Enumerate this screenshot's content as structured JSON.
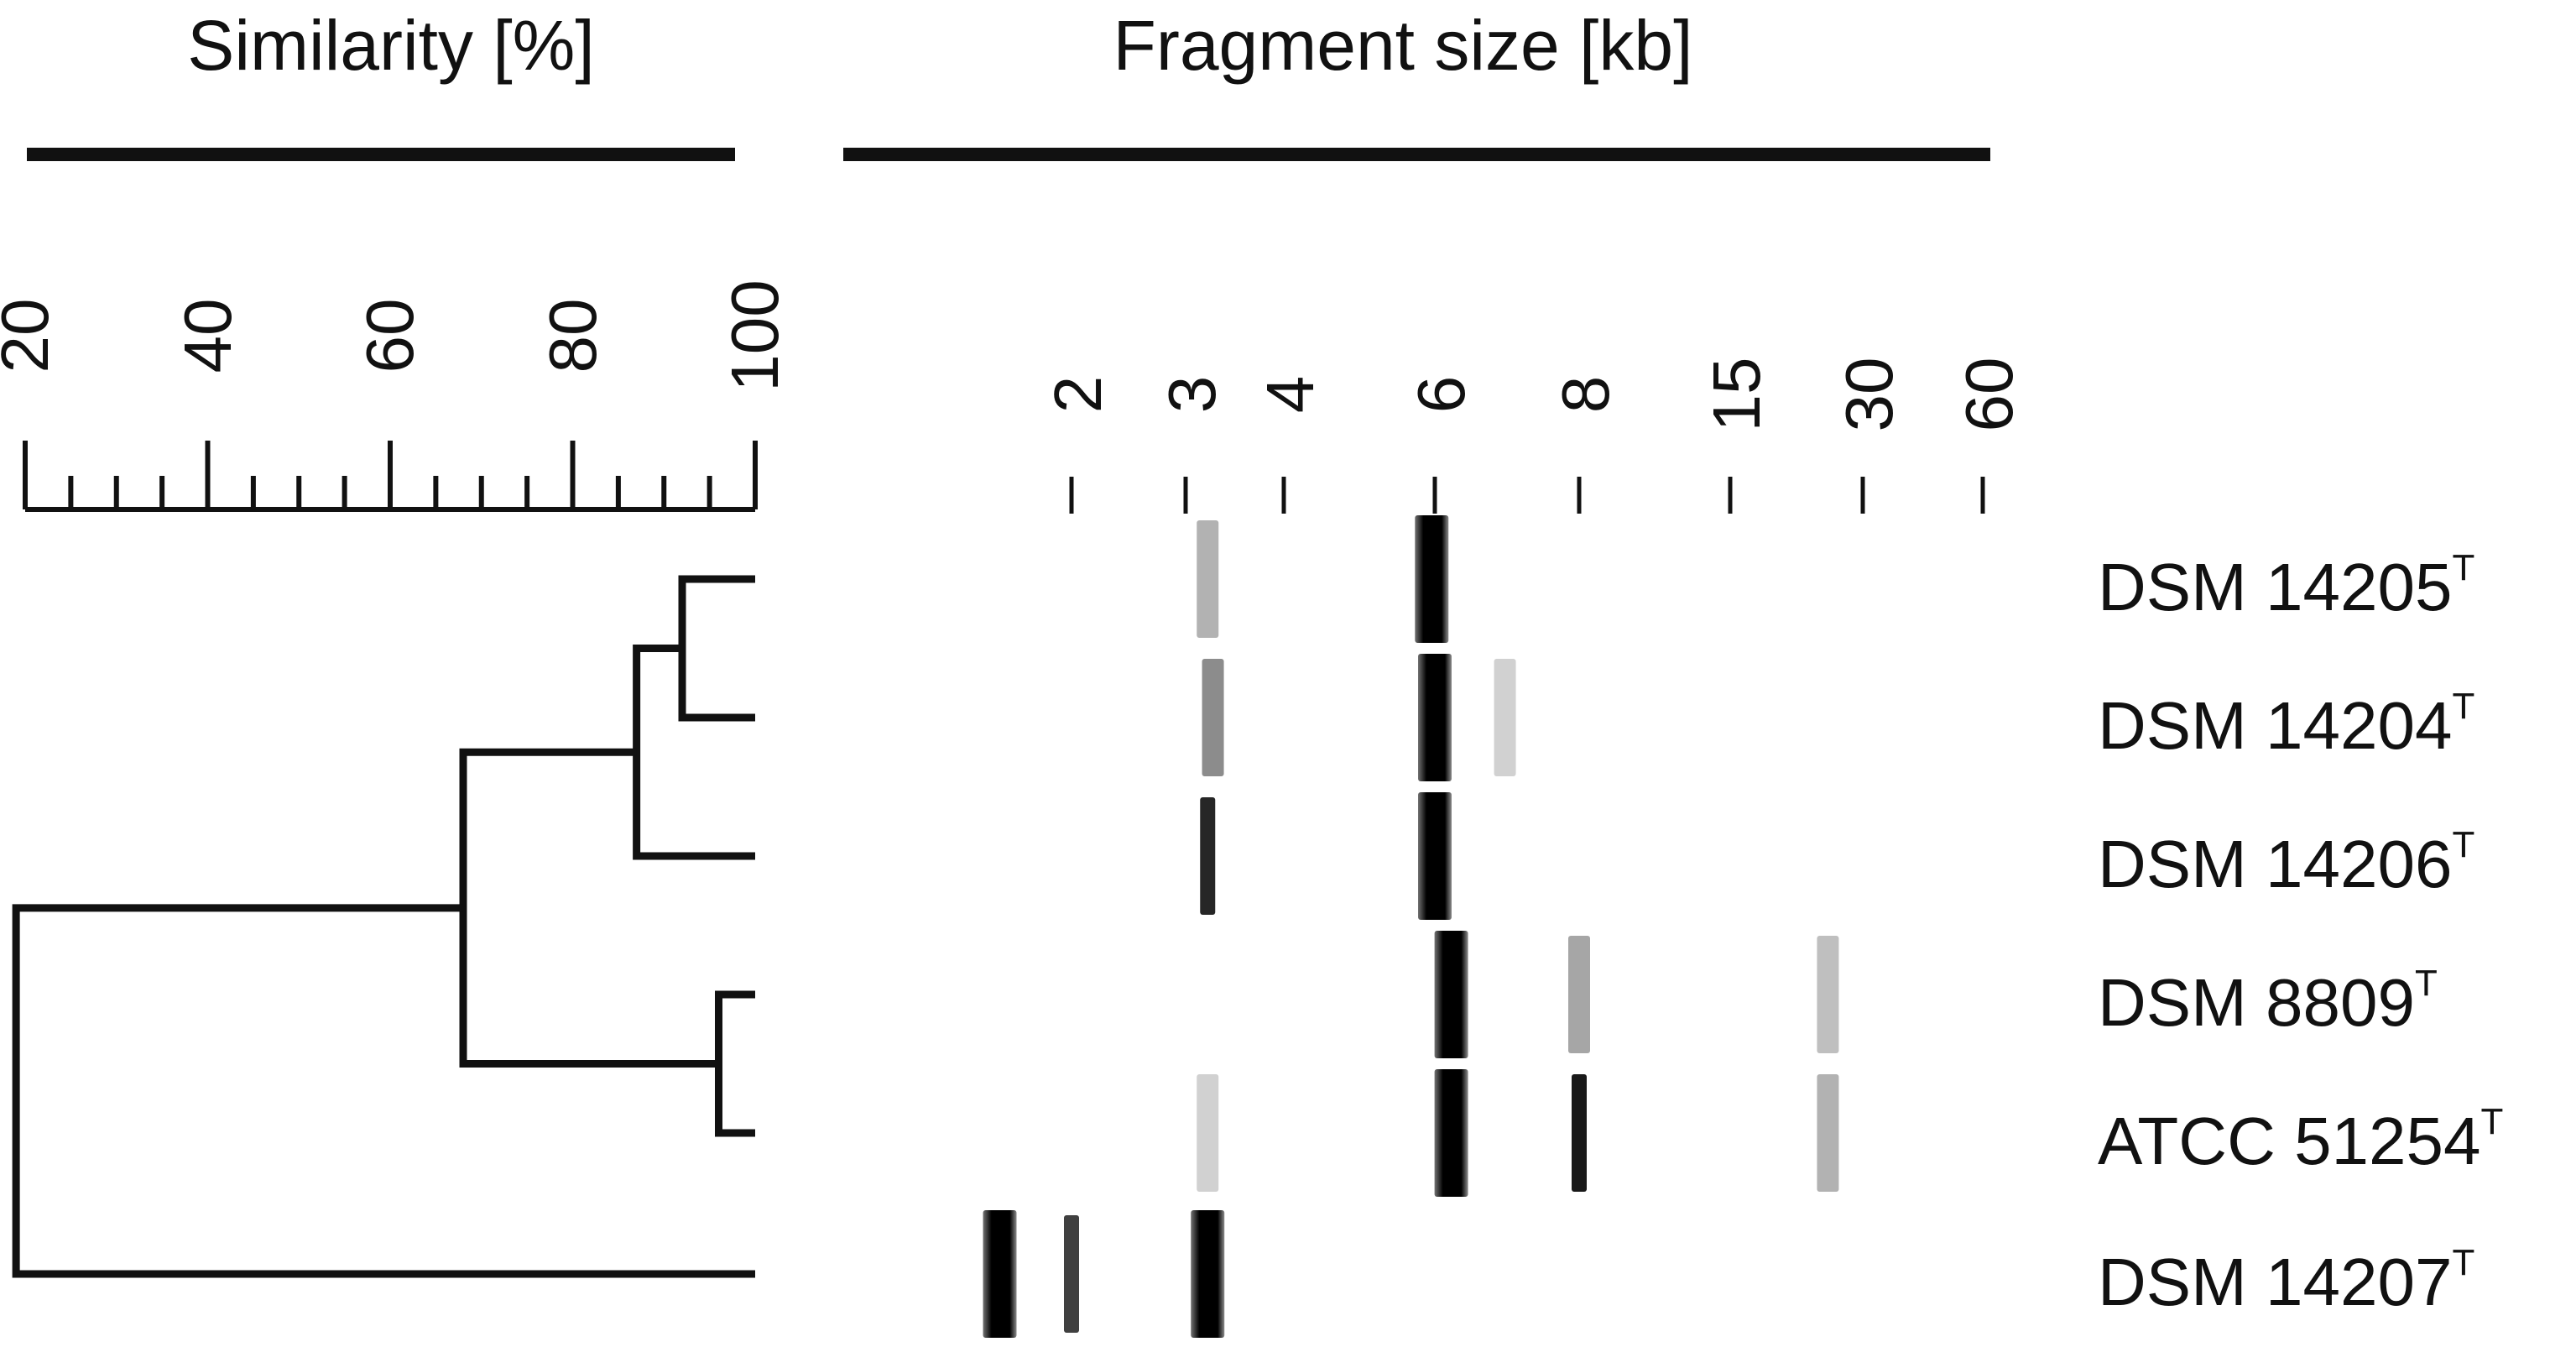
{
  "headers": {
    "similarity": "Similarity [%]",
    "fragment_size": "Fragment size [kb]"
  },
  "similarity_scale": {
    "min": 20,
    "max": 100,
    "major_ticks": [
      "20",
      "40",
      "60",
      "80",
      "100"
    ],
    "minor_step": 5
  },
  "fragment_scale": {
    "ticks": [
      {
        "label": "2",
        "kb": 2
      },
      {
        "label": "3",
        "kb": 3
      },
      {
        "label": "4",
        "kb": 4
      },
      {
        "label": "6",
        "kb": 6
      },
      {
        "label": "8",
        "kb": 8
      },
      {
        "label": "15",
        "kb": 15
      },
      {
        "label": "30",
        "kb": 30
      },
      {
        "label": "60",
        "kb": 60
      }
    ]
  },
  "strains": [
    {
      "name": "DSM 14205",
      "sup": "T"
    },
    {
      "name": "DSM 14204",
      "sup": "T"
    },
    {
      "name": "DSM 14206",
      "sup": "T"
    },
    {
      "name": "DSM 8809",
      "sup": "T"
    },
    {
      "name": "ATCC 51254",
      "sup": "T"
    },
    {
      "name": "DSM 14207",
      "sup": "T"
    }
  ],
  "dendrogram": {
    "leaf_similarity": 100,
    "merges": [
      {
        "a": "leaf:0",
        "b": "leaf:1",
        "similarity": 92
      },
      {
        "a": "node:0",
        "b": "leaf:2",
        "similarity": 87
      },
      {
        "a": "leaf:3",
        "b": "leaf:4",
        "similarity": 96
      },
      {
        "a": "node:1",
        "b": "node:2",
        "similarity": 68
      },
      {
        "a": "node:3",
        "b": "leaf:5",
        "similarity": 19
      }
    ]
  },
  "bands": [
    {
      "lane": 0,
      "kb": 3.2,
      "intensity": 0.3
    },
    {
      "lane": 0,
      "kb": 5.95,
      "intensity": 1.0
    },
    {
      "lane": 1,
      "kb": 3.25,
      "intensity": 0.45
    },
    {
      "lane": 1,
      "kb": 6.0,
      "intensity": 1.0
    },
    {
      "lane": 1,
      "kb": 6.9,
      "intensity": 0.08
    },
    {
      "lane": 2,
      "kb": 3.2,
      "intensity": 0.85
    },
    {
      "lane": 2,
      "kb": 6.0,
      "intensity": 1.0
    },
    {
      "lane": 3,
      "kb": 6.2,
      "intensity": 1.0
    },
    {
      "lane": 3,
      "kb": 8.0,
      "intensity": 0.35
    },
    {
      "lane": 3,
      "kb": 25.0,
      "intensity": 0.25
    },
    {
      "lane": 4,
      "kb": 3.2,
      "intensity": 0.12
    },
    {
      "lane": 4,
      "kb": 6.2,
      "intensity": 1.0
    },
    {
      "lane": 4,
      "kb": 8.0,
      "intensity": 0.9
    },
    {
      "lane": 4,
      "kb": 25.0,
      "intensity": 0.3
    },
    {
      "lane": 5,
      "kb": 1.55,
      "intensity": 1.0
    },
    {
      "lane": 5,
      "kb": 2.0,
      "intensity": 0.75
    },
    {
      "lane": 5,
      "kb": 3.2,
      "intensity": 1.0
    }
  ]
}
